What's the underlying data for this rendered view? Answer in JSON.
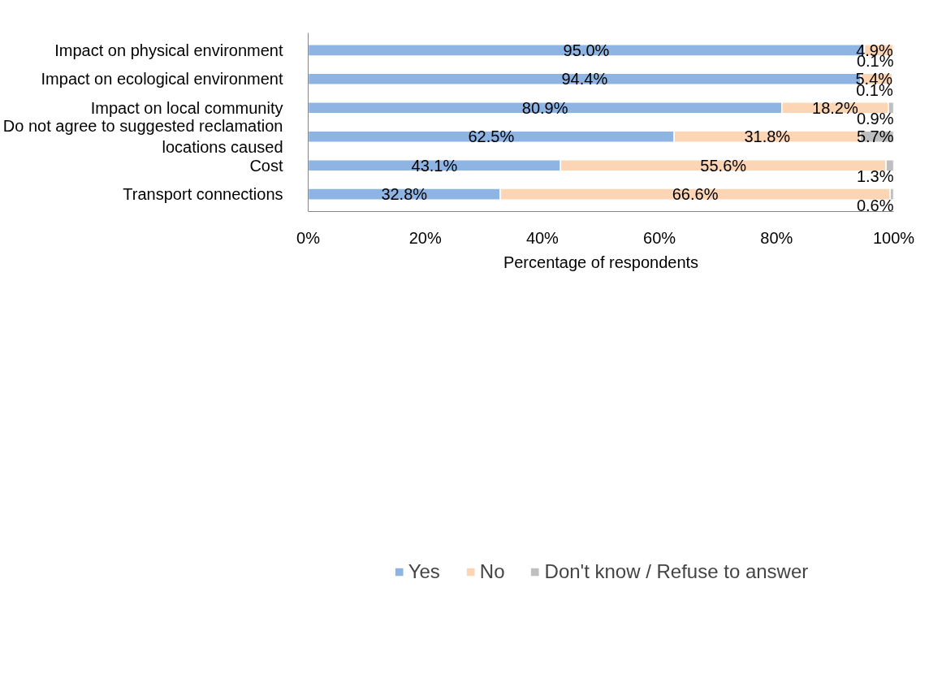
{
  "chart_data": {
    "type": "bar",
    "orientation": "horizontal",
    "stacked": true,
    "categories": [
      "Impact on physical environment",
      "Impact on ecological environment",
      "Impact on local community",
      "Do not agree to suggested reclamation locations caused",
      "Cost",
      "Transport connections"
    ],
    "series": [
      {
        "name": "Yes",
        "color": "#8eb4e3",
        "values": [
          95.0,
          94.4,
          80.9,
          62.5,
          43.1,
          32.8
        ],
        "value_labels": [
          "95.0%",
          "94.4%",
          "80.9%",
          "62.5%",
          "43.1%",
          "32.8%"
        ]
      },
      {
        "name": "No",
        "color": "#fcd5b5",
        "values": [
          4.9,
          5.4,
          18.2,
          31.8,
          55.6,
          66.6
        ],
        "value_labels": [
          "4.9%",
          "5.4%",
          "18.2%",
          "31.8%",
          "55.6%",
          "66.6%"
        ]
      },
      {
        "name": "Don't know / Refuse to answer",
        "color": "#bfbfbf",
        "values": [
          0.1,
          0.1,
          0.9,
          5.7,
          1.3,
          0.6
        ],
        "value_labels": [
          "0.1%",
          "0.1%",
          "0.9%",
          "5.7%",
          "1.3%",
          "0.6%"
        ]
      }
    ],
    "xlabel": "Percentage of respondents",
    "xlim": [
      0,
      100
    ],
    "xticks": [
      {
        "value": 0,
        "label": "0%"
      },
      {
        "value": 20,
        "label": "20%"
      },
      {
        "value": 40,
        "label": "40%"
      },
      {
        "value": 60,
        "label": "60%"
      },
      {
        "value": 80,
        "label": "80%"
      },
      {
        "value": 100,
        "label": "100%"
      }
    ],
    "grid": false,
    "legend": "bottom"
  }
}
